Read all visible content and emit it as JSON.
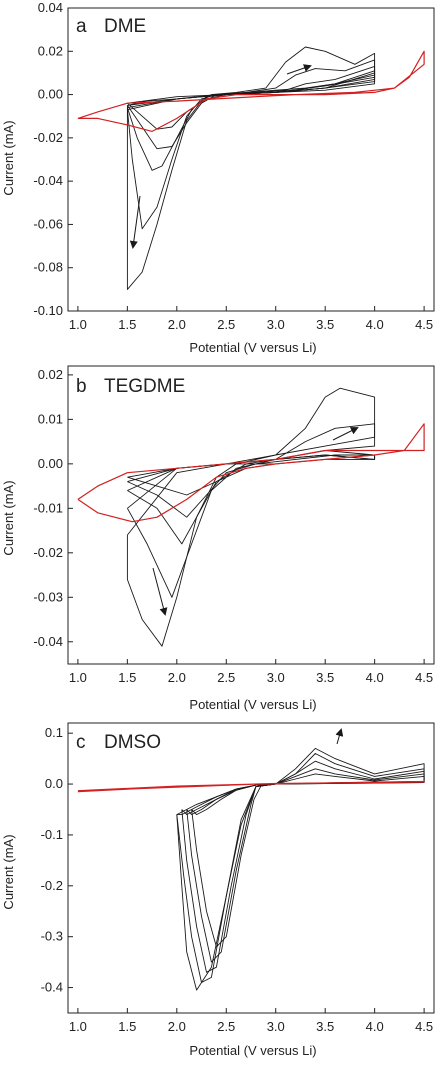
{
  "colors": {
    "black_trace": "#1a1a1a",
    "red_trace": "#d42020",
    "axis": "#222222",
    "background": "#ffffff"
  },
  "chart_data": [
    {
      "type": "line",
      "panel_letter": "a",
      "panel_name": "DME",
      "xlabel": "Potential (V versus Li)",
      "ylabel": "Current (mA)",
      "xlim": [
        0.9,
        4.6
      ],
      "ylim": [
        -0.1,
        0.04
      ],
      "xticks": [
        "1.0",
        "1.5",
        "2.0",
        "2.5",
        "3.0",
        "3.5",
        "4.0",
        "4.5"
      ],
      "yticks": [
        "-0.10",
        "-0.08",
        "-0.06",
        "-0.04",
        "-0.02",
        "0.00",
        "0.02",
        "0.04"
      ],
      "grid": false,
      "annotations": [
        "arrow (increasing cycles)",
        "arrow (increasing cycles)"
      ],
      "series": [
        {
          "color": "#1a1a1a",
          "x": [
            1.5,
            1.5,
            1.65,
            1.8,
            1.95,
            2.1,
            2.25,
            2.35,
            2.6,
            2.9,
            3.1,
            3.3,
            3.5,
            3.8,
            4.0,
            4.0,
            3.6,
            3.2,
            2.8,
            2.4,
            2.0,
            1.7,
            1.5
          ],
          "y": [
            -0.005,
            -0.09,
            -0.082,
            -0.06,
            -0.035,
            -0.012,
            -0.003,
            -0.0,
            0.001,
            0.003,
            0.015,
            0.022,
            0.02,
            0.014,
            0.019,
            0.009,
            0.005,
            0.002,
            0.001,
            0.0,
            -0.002,
            -0.003,
            -0.005
          ]
        },
        {
          "color": "#1a1a1a",
          "x": [
            1.5,
            1.55,
            1.65,
            1.8,
            1.95,
            2.1,
            2.25,
            2.4,
            2.7,
            3.0,
            3.2,
            3.4,
            3.7,
            4.0,
            4.0,
            3.5,
            3.0,
            2.5,
            2.0,
            1.5
          ],
          "y": [
            -0.007,
            -0.03,
            -0.062,
            -0.052,
            -0.03,
            -0.01,
            -0.002,
            0.0,
            0.001,
            0.003,
            0.009,
            0.012,
            0.011,
            0.016,
            0.008,
            0.004,
            0.001,
            0.0,
            -0.002,
            -0.007
          ]
        },
        {
          "color": "#1a1a1a",
          "x": [
            1.5,
            1.6,
            1.75,
            1.85,
            2.0,
            2.15,
            2.3,
            2.5,
            2.8,
            3.1,
            3.3,
            3.6,
            4.0,
            4.0,
            3.5,
            3.0,
            2.5,
            2.0,
            1.5
          ],
          "y": [
            -0.006,
            -0.02,
            -0.035,
            -0.033,
            -0.02,
            -0.007,
            -0.001,
            0.0,
            0.001,
            0.002,
            0.005,
            0.007,
            0.013,
            0.007,
            0.003,
            0.001,
            0.0,
            -0.002,
            -0.006
          ]
        },
        {
          "color": "#1a1a1a",
          "x": [
            1.5,
            1.65,
            1.8,
            1.95,
            2.1,
            2.25,
            2.4,
            2.7,
            3.0,
            3.3,
            3.6,
            4.0,
            4.0,
            3.5,
            3.0,
            2.5,
            2.0,
            1.5
          ],
          "y": [
            -0.005,
            -0.015,
            -0.025,
            -0.024,
            -0.013,
            -0.004,
            0.0,
            0.001,
            0.002,
            0.003,
            0.005,
            0.011,
            0.006,
            0.003,
            0.001,
            0.0,
            -0.002,
            -0.005
          ]
        },
        {
          "color": "#1a1a1a",
          "x": [
            1.5,
            1.65,
            1.8,
            1.95,
            2.1,
            2.3,
            2.5,
            3.0,
            3.5,
            4.0,
            4.0,
            3.5,
            3.0,
            2.5,
            2.0,
            1.5
          ],
          "y": [
            -0.004,
            -0.01,
            -0.016,
            -0.015,
            -0.008,
            -0.002,
            0.0,
            0.001,
            0.003,
            0.01,
            0.005,
            0.002,
            0.001,
            0.0,
            -0.001,
            -0.004
          ]
        },
        {
          "color": "#d42020",
          "x": [
            1.0,
            1.2,
            1.5,
            1.75,
            2.0,
            2.3,
            2.6,
            3.0,
            3.5,
            4.0,
            4.2,
            4.35,
            4.5,
            4.5,
            4.2,
            3.8,
            3.2,
            2.8,
            2.4,
            2.0,
            1.5,
            1.2,
            1.0
          ],
          "y": [
            -0.011,
            -0.011,
            -0.014,
            -0.017,
            -0.011,
            -0.002,
            0.0,
            0.0,
            0.0,
            0.001,
            0.003,
            0.008,
            0.02,
            0.014,
            0.003,
            0.001,
            0.0,
            -0.001,
            -0.002,
            -0.003,
            -0.004,
            -0.008,
            -0.011
          ]
        }
      ]
    },
    {
      "type": "line",
      "panel_letter": "b",
      "panel_name": "TEGDME",
      "xlabel": "Potential (V versus Li)",
      "ylabel": "Current (mA)",
      "xlim": [
        0.9,
        4.6
      ],
      "ylim": [
        -0.045,
        0.022
      ],
      "xticks": [
        "1.0",
        "1.5",
        "2.0",
        "2.5",
        "3.0",
        "3.5",
        "4.0",
        "4.5"
      ],
      "yticks": [
        "-0.04",
        "-0.03",
        "-0.02",
        "-0.01",
        "0.00",
        "0.01",
        "0.02"
      ],
      "grid": false,
      "annotations": [
        "arrow (increasing cycles)",
        "arrow (increasing cycles)"
      ],
      "series": [
        {
          "color": "#1a1a1a",
          "x": [
            1.5,
            1.5,
            1.65,
            1.85,
            2.0,
            2.2,
            2.4,
            2.6,
            3.0,
            3.3,
            3.5,
            3.65,
            4.0,
            4.0,
            3.5,
            3.0,
            2.5,
            2.0,
            1.5
          ],
          "y": [
            -0.016,
            -0.026,
            -0.035,
            -0.041,
            -0.03,
            -0.012,
            -0.003,
            0.0,
            0.002,
            0.008,
            0.015,
            0.017,
            0.015,
            0.006,
            0.004,
            0.002,
            0.0,
            -0.002,
            -0.016
          ]
        },
        {
          "color": "#1a1a1a",
          "x": [
            1.5,
            1.7,
            1.95,
            2.15,
            2.35,
            2.6,
            3.0,
            3.3,
            3.6,
            4.0,
            4.0,
            3.5,
            3.0,
            2.5,
            2.0,
            1.5
          ],
          "y": [
            -0.01,
            -0.018,
            -0.03,
            -0.018,
            -0.006,
            -0.001,
            0.001,
            0.005,
            0.008,
            0.009,
            0.004,
            0.003,
            0.001,
            0.0,
            -0.001,
            -0.01
          ]
        },
        {
          "color": "#1a1a1a",
          "x": [
            1.5,
            1.8,
            2.05,
            2.2,
            2.4,
            2.7,
            3.0,
            3.5,
            4.0,
            4.0,
            3.5,
            3.0,
            2.5,
            2.0,
            1.5
          ],
          "y": [
            -0.006,
            -0.01,
            -0.018,
            -0.012,
            -0.004,
            0.0,
            0.001,
            0.003,
            0.002,
            0.001,
            0.002,
            0.001,
            0.0,
            -0.001,
            -0.006
          ]
        },
        {
          "color": "#1a1a1a",
          "x": [
            1.5,
            1.8,
            2.1,
            2.3,
            2.5,
            2.8,
            3.2,
            3.6,
            4.0,
            4.0,
            3.5,
            3.0,
            2.5,
            2.0,
            1.5
          ],
          "y": [
            -0.004,
            -0.007,
            -0.012,
            -0.007,
            -0.002,
            0.0,
            0.001,
            0.002,
            0.002,
            0.001,
            0.002,
            0.001,
            0.0,
            -0.001,
            -0.004
          ]
        },
        {
          "color": "#1a1a1a",
          "x": [
            1.5,
            1.8,
            2.1,
            2.4,
            2.7,
            3.0,
            3.5,
            4.0,
            4.0,
            3.5,
            3.0,
            2.5,
            2.0,
            1.5
          ],
          "y": [
            -0.003,
            -0.005,
            -0.007,
            -0.004,
            -0.001,
            0.0,
            0.001,
            0.002,
            0.001,
            0.001,
            0.0,
            0.0,
            -0.001,
            -0.003
          ]
        },
        {
          "color": "#d42020",
          "x": [
            1.0,
            1.2,
            1.55,
            1.8,
            2.1,
            2.4,
            2.7,
            3.0,
            3.5,
            4.0,
            4.3,
            4.5,
            4.5,
            4.3,
            4.0,
            3.5,
            3.0,
            2.5,
            2.0,
            1.5,
            1.2,
            1.0
          ],
          "y": [
            -0.008,
            -0.011,
            -0.013,
            -0.012,
            -0.008,
            -0.003,
            -0.001,
            0.0,
            0.001,
            0.002,
            0.003,
            0.009,
            0.003,
            0.003,
            0.003,
            0.003,
            0.001,
            0.0,
            -0.001,
            -0.002,
            -0.005,
            -0.008
          ]
        }
      ]
    },
    {
      "type": "line",
      "panel_letter": "c",
      "panel_name": "DMSO",
      "xlabel": "Potential (V versus Li)",
      "ylabel": "Current (mA)",
      "xlim": [
        0.9,
        4.6
      ],
      "ylim": [
        -0.45,
        0.12
      ],
      "xticks": [
        "1.0",
        "1.5",
        "2.0",
        "2.5",
        "3.0",
        "3.5",
        "4.0",
        "4.5"
      ],
      "yticks": [
        "-0.4",
        "-0.3",
        "-0.2",
        "-0.1",
        "0.0",
        "0.1"
      ],
      "grid": false,
      "annotations": [
        "arrow (increasing cycles)"
      ],
      "series": [
        {
          "color": "#1a1a1a",
          "x": [
            2.0,
            2.05,
            2.1,
            2.2,
            2.35,
            2.5,
            2.65,
            2.8,
            3.0,
            3.2,
            3.4,
            3.6,
            4.0,
            4.5,
            4.5,
            4.0,
            3.5,
            3.0,
            2.8,
            2.6,
            2.4,
            2.2,
            2.05,
            2.0
          ],
          "y": [
            -0.06,
            -0.2,
            -0.33,
            -0.405,
            -0.36,
            -0.22,
            -0.08,
            -0.005,
            0.0,
            0.03,
            0.07,
            0.05,
            0.02,
            0.04,
            0.005,
            0.004,
            0.002,
            0.0,
            -0.002,
            -0.01,
            -0.025,
            -0.04,
            -0.055,
            -0.06
          ]
        },
        {
          "color": "#1a1a1a",
          "x": [
            2.0,
            2.07,
            2.15,
            2.25,
            2.35,
            2.5,
            2.65,
            2.8,
            3.0,
            3.2,
            3.4,
            3.6,
            4.0,
            4.5,
            4.5,
            4.0,
            3.5,
            3.0,
            2.8,
            2.6,
            2.4,
            2.2,
            2.05,
            2.0
          ],
          "y": [
            -0.06,
            -0.18,
            -0.3,
            -0.39,
            -0.38,
            -0.22,
            -0.07,
            -0.005,
            0.0,
            0.02,
            0.06,
            0.04,
            0.015,
            0.03,
            0.004,
            0.003,
            0.002,
            0.0,
            -0.002,
            -0.01,
            -0.025,
            -0.045,
            -0.06,
            -0.06
          ]
        },
        {
          "color": "#1a1a1a",
          "x": [
            2.05,
            2.1,
            2.2,
            2.3,
            2.4,
            2.55,
            2.7,
            2.8,
            3.0,
            3.2,
            3.4,
            3.6,
            4.0,
            4.5,
            4.5,
            4.0,
            3.5,
            3.0,
            2.8,
            2.6,
            2.4,
            2.2,
            2.1,
            2.05
          ],
          "y": [
            -0.05,
            -0.15,
            -0.28,
            -0.37,
            -0.36,
            -0.2,
            -0.06,
            -0.005,
            0.0,
            0.02,
            0.045,
            0.03,
            0.01,
            0.025,
            0.004,
            0.003,
            0.002,
            0.0,
            -0.002,
            -0.01,
            -0.03,
            -0.05,
            -0.06,
            -0.05
          ]
        },
        {
          "color": "#1a1a1a",
          "x": [
            2.1,
            2.15,
            2.25,
            2.35,
            2.45,
            2.6,
            2.75,
            2.8,
            3.0,
            3.2,
            3.4,
            3.6,
            4.0,
            4.5,
            4.5,
            4.0,
            3.5,
            3.0,
            2.8,
            2.6,
            2.4,
            2.25,
            2.15,
            2.1
          ],
          "y": [
            -0.05,
            -0.14,
            -0.26,
            -0.35,
            -0.33,
            -0.17,
            -0.04,
            -0.005,
            0.0,
            0.015,
            0.03,
            0.02,
            0.008,
            0.02,
            0.003,
            0.002,
            0.001,
            0.0,
            -0.002,
            -0.012,
            -0.03,
            -0.05,
            -0.06,
            -0.05
          ]
        },
        {
          "color": "#1a1a1a",
          "x": [
            2.15,
            2.2,
            2.3,
            2.4,
            2.5,
            2.65,
            2.78,
            2.85,
            3.0,
            3.2,
            3.4,
            3.6,
            4.0,
            4.5,
            4.5,
            4.0,
            3.5,
            3.0,
            2.8,
            2.6,
            2.45,
            2.3,
            2.2,
            2.15
          ],
          "y": [
            -0.05,
            -0.13,
            -0.25,
            -0.32,
            -0.3,
            -0.14,
            -0.03,
            -0.004,
            0.0,
            0.01,
            0.02,
            0.015,
            0.006,
            0.015,
            0.003,
            0.002,
            0.001,
            0.0,
            -0.002,
            -0.012,
            -0.03,
            -0.05,
            -0.06,
            -0.05
          ]
        },
        {
          "color": "#d42020",
          "x": [
            1.0,
            1.3,
            1.6,
            2.0,
            2.4,
            2.8,
            3.2,
            3.6,
            4.0,
            4.5,
            4.5,
            4.0,
            3.0,
            2.0,
            1.0
          ],
          "y": [
            -0.015,
            -0.012,
            -0.009,
            -0.006,
            -0.003,
            0.0,
            0.001,
            0.002,
            0.003,
            0.005,
            0.004,
            0.003,
            0.001,
            -0.004,
            -0.013
          ]
        }
      ]
    }
  ]
}
